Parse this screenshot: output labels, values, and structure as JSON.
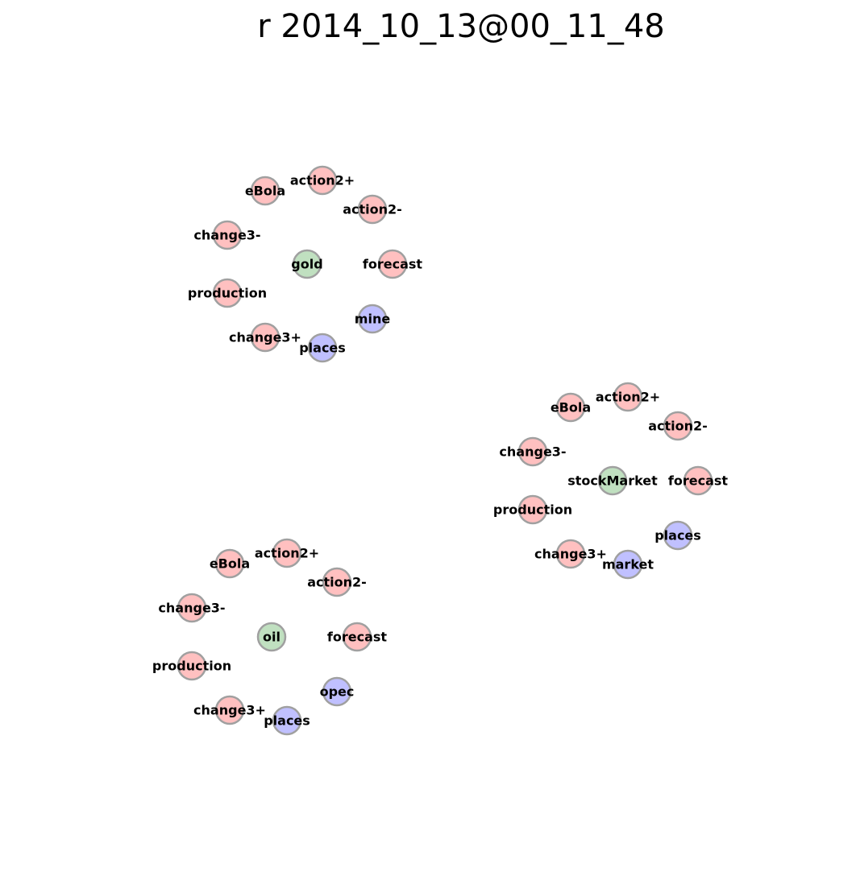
{
  "title": "r 2014_10_13@00_11_48",
  "colors": {
    "red": "#ffc0c0",
    "green": "#c0e0c0",
    "blue": "#c0c0ff",
    "outline": "#a0a0a0"
  },
  "clusters": [
    {
      "name": "gold",
      "nodes": [
        {
          "label": "eBola",
          "color": "red"
        },
        {
          "label": "action2+",
          "color": "red"
        },
        {
          "label": "action2-",
          "color": "red"
        },
        {
          "label": "change3-",
          "color": "red"
        },
        {
          "label": "gold",
          "color": "green"
        },
        {
          "label": "forecast",
          "color": "red"
        },
        {
          "label": "production",
          "color": "red"
        },
        {
          "label": "mine",
          "color": "blue"
        },
        {
          "label": "change3+",
          "color": "red"
        },
        {
          "label": "places",
          "color": "blue"
        }
      ]
    },
    {
      "name": "stockMarket",
      "nodes": [
        {
          "label": "eBola",
          "color": "red"
        },
        {
          "label": "action2+",
          "color": "red"
        },
        {
          "label": "action2-",
          "color": "red"
        },
        {
          "label": "change3-",
          "color": "red"
        },
        {
          "label": "stockMarket",
          "color": "green"
        },
        {
          "label": "forecast",
          "color": "red"
        },
        {
          "label": "production",
          "color": "red"
        },
        {
          "label": "places",
          "color": "blue"
        },
        {
          "label": "change3+",
          "color": "red"
        },
        {
          "label": "market",
          "color": "blue"
        }
      ]
    },
    {
      "name": "oil",
      "nodes": [
        {
          "label": "eBola",
          "color": "red"
        },
        {
          "label": "action2+",
          "color": "red"
        },
        {
          "label": "action2-",
          "color": "red"
        },
        {
          "label": "change3-",
          "color": "red"
        },
        {
          "label": "oil",
          "color": "green"
        },
        {
          "label": "forecast",
          "color": "red"
        },
        {
          "label": "production",
          "color": "red"
        },
        {
          "label": "opec",
          "color": "blue"
        },
        {
          "label": "change3+",
          "color": "red"
        },
        {
          "label": "places",
          "color": "blue"
        }
      ]
    }
  ]
}
